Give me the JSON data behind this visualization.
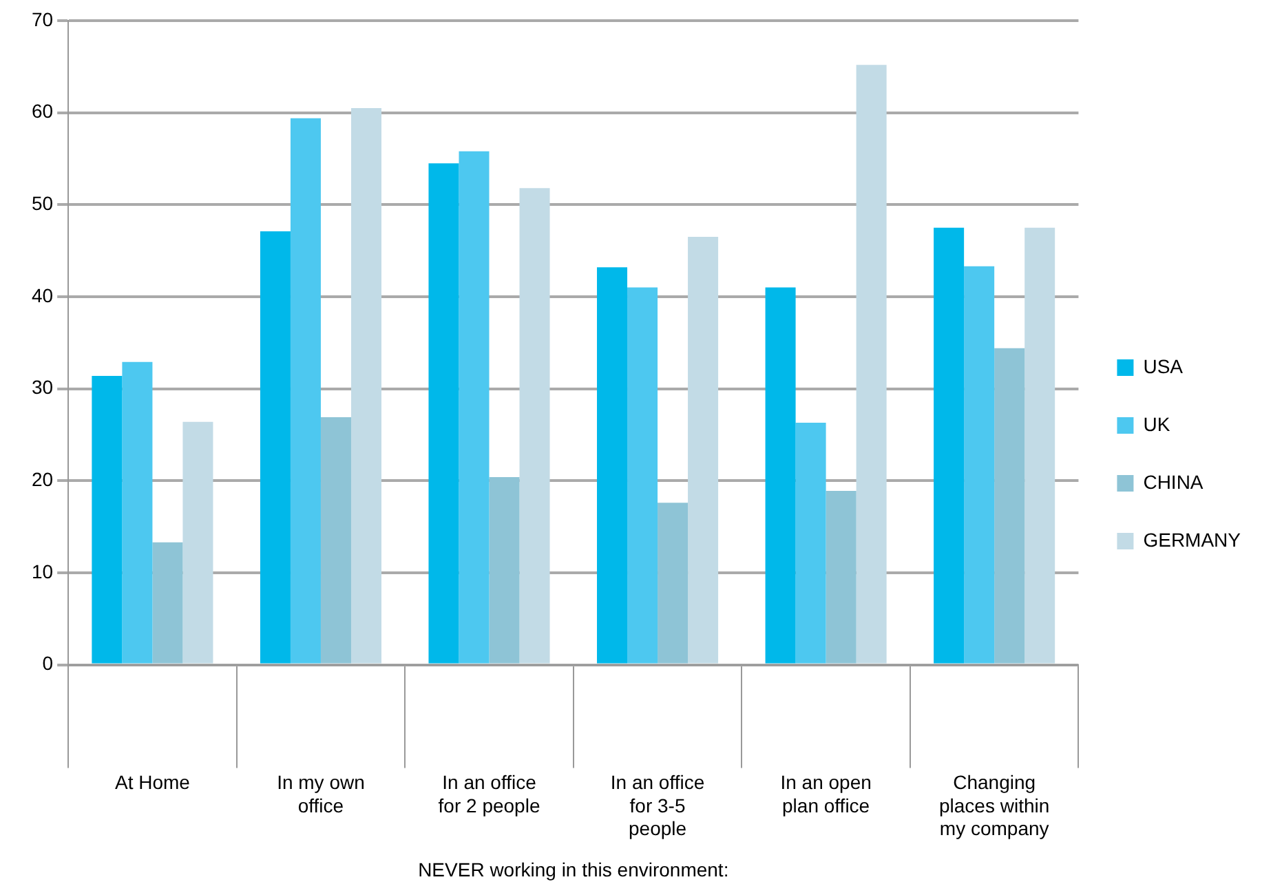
{
  "chart_data": {
    "type": "bar",
    "xlabel": "NEVER working in this environment:",
    "categories": [
      "At Home",
      "In my own office",
      "In an office for 2 people",
      "In an office for 3-5 people",
      "In an open plan office",
      "Changing places within my company"
    ],
    "series": [
      {
        "name": "USA",
        "color": "#00b8ea",
        "values": [
          31.4,
          47.1,
          54.5,
          43.2,
          41.0,
          47.5
        ]
      },
      {
        "name": "UK",
        "color": "#4dc8f0",
        "values": [
          32.9,
          59.4,
          55.8,
          41.0,
          26.3,
          43.3
        ]
      },
      {
        "name": "CHINA",
        "color": "#8ec4d6",
        "values": [
          13.3,
          26.9,
          20.4,
          17.6,
          18.9,
          34.4
        ]
      },
      {
        "name": "GERMANY",
        "color": "#c2dbe6",
        "values": [
          26.4,
          60.5,
          51.8,
          46.5,
          65.2,
          47.5
        ]
      }
    ],
    "ylim": [
      0,
      70
    ],
    "yticks": [
      0,
      10,
      20,
      30,
      40,
      50,
      60,
      70
    ],
    "grid": "y",
    "legend": "right"
  }
}
